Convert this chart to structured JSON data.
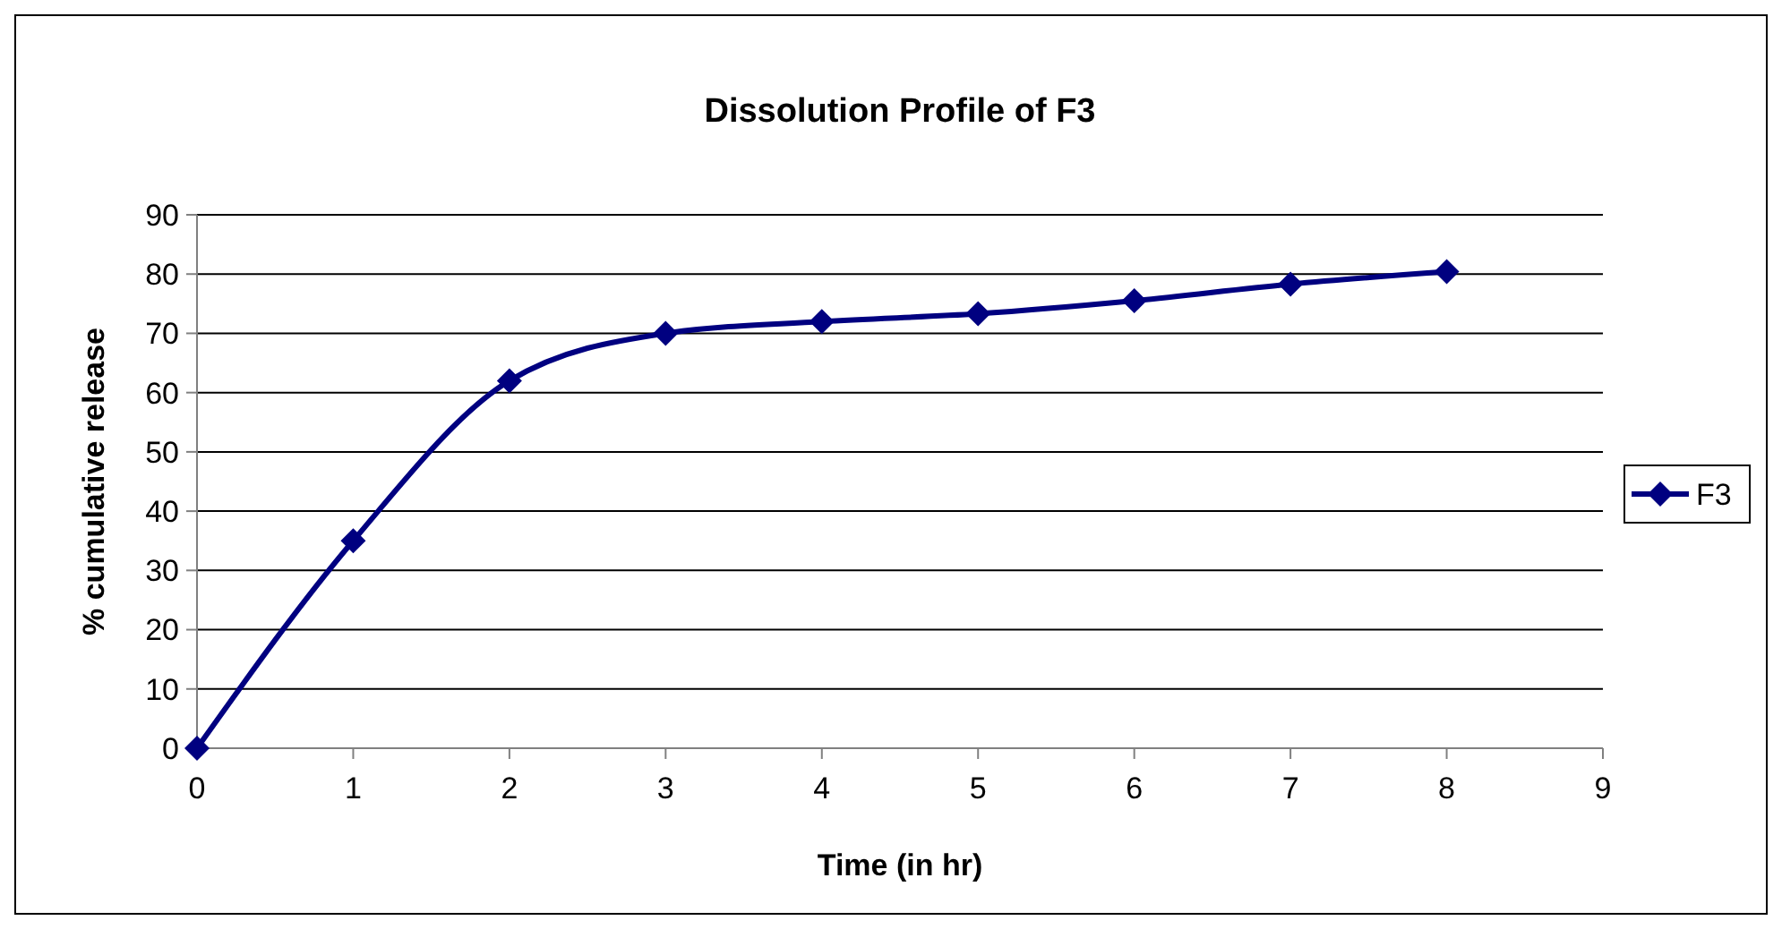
{
  "chart_data": {
    "type": "line",
    "title": "Dissolution Profile of F3",
    "xlabel": "Time (in hr)",
    "ylabel": "% cumulative release",
    "x": [
      0,
      1,
      2,
      3,
      4,
      5,
      6,
      7,
      8
    ],
    "series": [
      {
        "name": "F3",
        "color": "#000080",
        "values": [
          0,
          35,
          62,
          70,
          72,
          73.3,
          75.5,
          78.3,
          80.4
        ]
      }
    ],
    "xlim": [
      0,
      9
    ],
    "xticks": [
      0,
      1,
      2,
      3,
      4,
      5,
      6,
      7,
      8,
      9
    ],
    "ylim": [
      0,
      90
    ],
    "yticks": [
      0,
      10,
      20,
      30,
      40,
      50,
      60,
      70,
      80,
      90
    ],
    "grid": "y",
    "legend": "right",
    "marker": "diamond",
    "line_style": "solid"
  }
}
